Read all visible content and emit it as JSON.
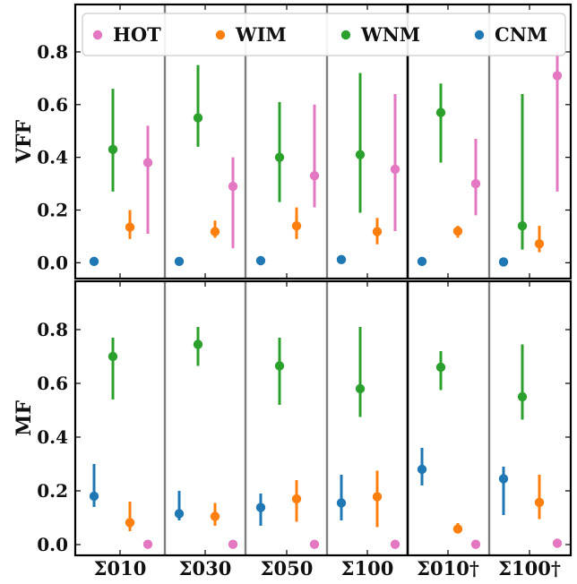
{
  "chart_data": {
    "type": "scatter",
    "subtype": "point-with-error-bars",
    "categories": [
      "Σ010",
      "Σ030",
      "Σ050",
      "Σ100",
      "Σ010†",
      "Σ100†"
    ],
    "series_names": [
      "HOT",
      "WIM",
      "WNM",
      "CNM"
    ],
    "colors": {
      "HOT": "#e377c2",
      "WIM": "#ff7f0e",
      "WNM": "#2ca02c",
      "CNM": "#1f77b4",
      "thin_divider": "#808080",
      "thick_divider": "#000000"
    },
    "legend": {
      "placement": "top",
      "order": [
        "HOT",
        "WIM",
        "WNM",
        "CNM"
      ]
    },
    "panels": [
      {
        "ylabel": "VFF",
        "ylim": [
          -0.06,
          0.98
        ],
        "yticks": [
          "0.0",
          "0.2",
          "0.4",
          "0.6",
          "0.8"
        ],
        "ytick_values": [
          0.0,
          0.2,
          0.4,
          0.6,
          0.8
        ],
        "series": [
          {
            "name": "CNM",
            "values": [
              0.005,
              0.005,
              0.008,
              0.012,
              0.005,
              0.003
            ],
            "low": [
              0.002,
              0.002,
              0.004,
              0.008,
              0.002,
              0.001
            ],
            "high": [
              0.008,
              0.008,
              0.012,
              0.018,
              0.008,
              0.006
            ]
          },
          {
            "name": "WNM",
            "values": [
              0.43,
              0.55,
              0.4,
              0.41,
              0.57,
              0.14
            ],
            "low": [
              0.27,
              0.44,
              0.23,
              0.19,
              0.38,
              0.05
            ],
            "high": [
              0.66,
              0.75,
              0.61,
              0.72,
              0.68,
              0.64
            ]
          },
          {
            "name": "WIM",
            "values": [
              0.135,
              0.118,
              0.14,
              0.118,
              0.12,
              0.072
            ],
            "low": [
              0.09,
              0.095,
              0.09,
              0.07,
              0.095,
              0.04
            ],
            "high": [
              0.2,
              0.16,
              0.21,
              0.17,
              0.14,
              0.14
            ]
          },
          {
            "name": "HOT",
            "values": [
              0.38,
              0.29,
              0.33,
              0.355,
              0.3,
              0.71
            ],
            "low": [
              0.11,
              0.055,
              0.21,
              0.12,
              0.18,
              0.27
            ],
            "high": [
              0.52,
              0.4,
              0.6,
              0.64,
              0.47,
              0.8
            ]
          }
        ]
      },
      {
        "ylabel": "MF",
        "ylim": [
          -0.04,
          0.98
        ],
        "yticks": [
          "0.0",
          "0.2",
          "0.4",
          "0.6",
          "0.8"
        ],
        "ytick_values": [
          0.0,
          0.2,
          0.4,
          0.6,
          0.8
        ],
        "series": [
          {
            "name": "CNM",
            "values": [
              0.18,
              0.115,
              0.138,
              0.155,
              0.28,
              0.245
            ],
            "low": [
              0.14,
              0.09,
              0.07,
              0.09,
              0.22,
              0.11
            ],
            "high": [
              0.3,
              0.2,
              0.19,
              0.26,
              0.36,
              0.29
            ]
          },
          {
            "name": "WNM",
            "values": [
              0.7,
              0.745,
              0.665,
              0.58,
              0.66,
              0.55
            ],
            "low": [
              0.54,
              0.665,
              0.52,
              0.475,
              0.575,
              0.465
            ],
            "high": [
              0.77,
              0.81,
              0.77,
              0.81,
              0.72,
              0.745
            ]
          },
          {
            "name": "WIM",
            "values": [
              0.082,
              0.105,
              0.17,
              0.178,
              0.058,
              0.157
            ],
            "low": [
              0.05,
              0.07,
              0.085,
              0.065,
              0.045,
              0.095
            ],
            "high": [
              0.16,
              0.155,
              0.24,
              0.275,
              0.08,
              0.26
            ]
          },
          {
            "name": "HOT",
            "values": [
              0.001,
              0.001,
              0.001,
              0.001,
              0.001,
              0.005
            ],
            "low": [
              0.0,
              0.0,
              0.0,
              0.0,
              0.0,
              0.002
            ],
            "high": [
              0.002,
              0.002,
              0.002,
              0.002,
              0.002,
              0.008
            ]
          }
        ]
      }
    ]
  }
}
